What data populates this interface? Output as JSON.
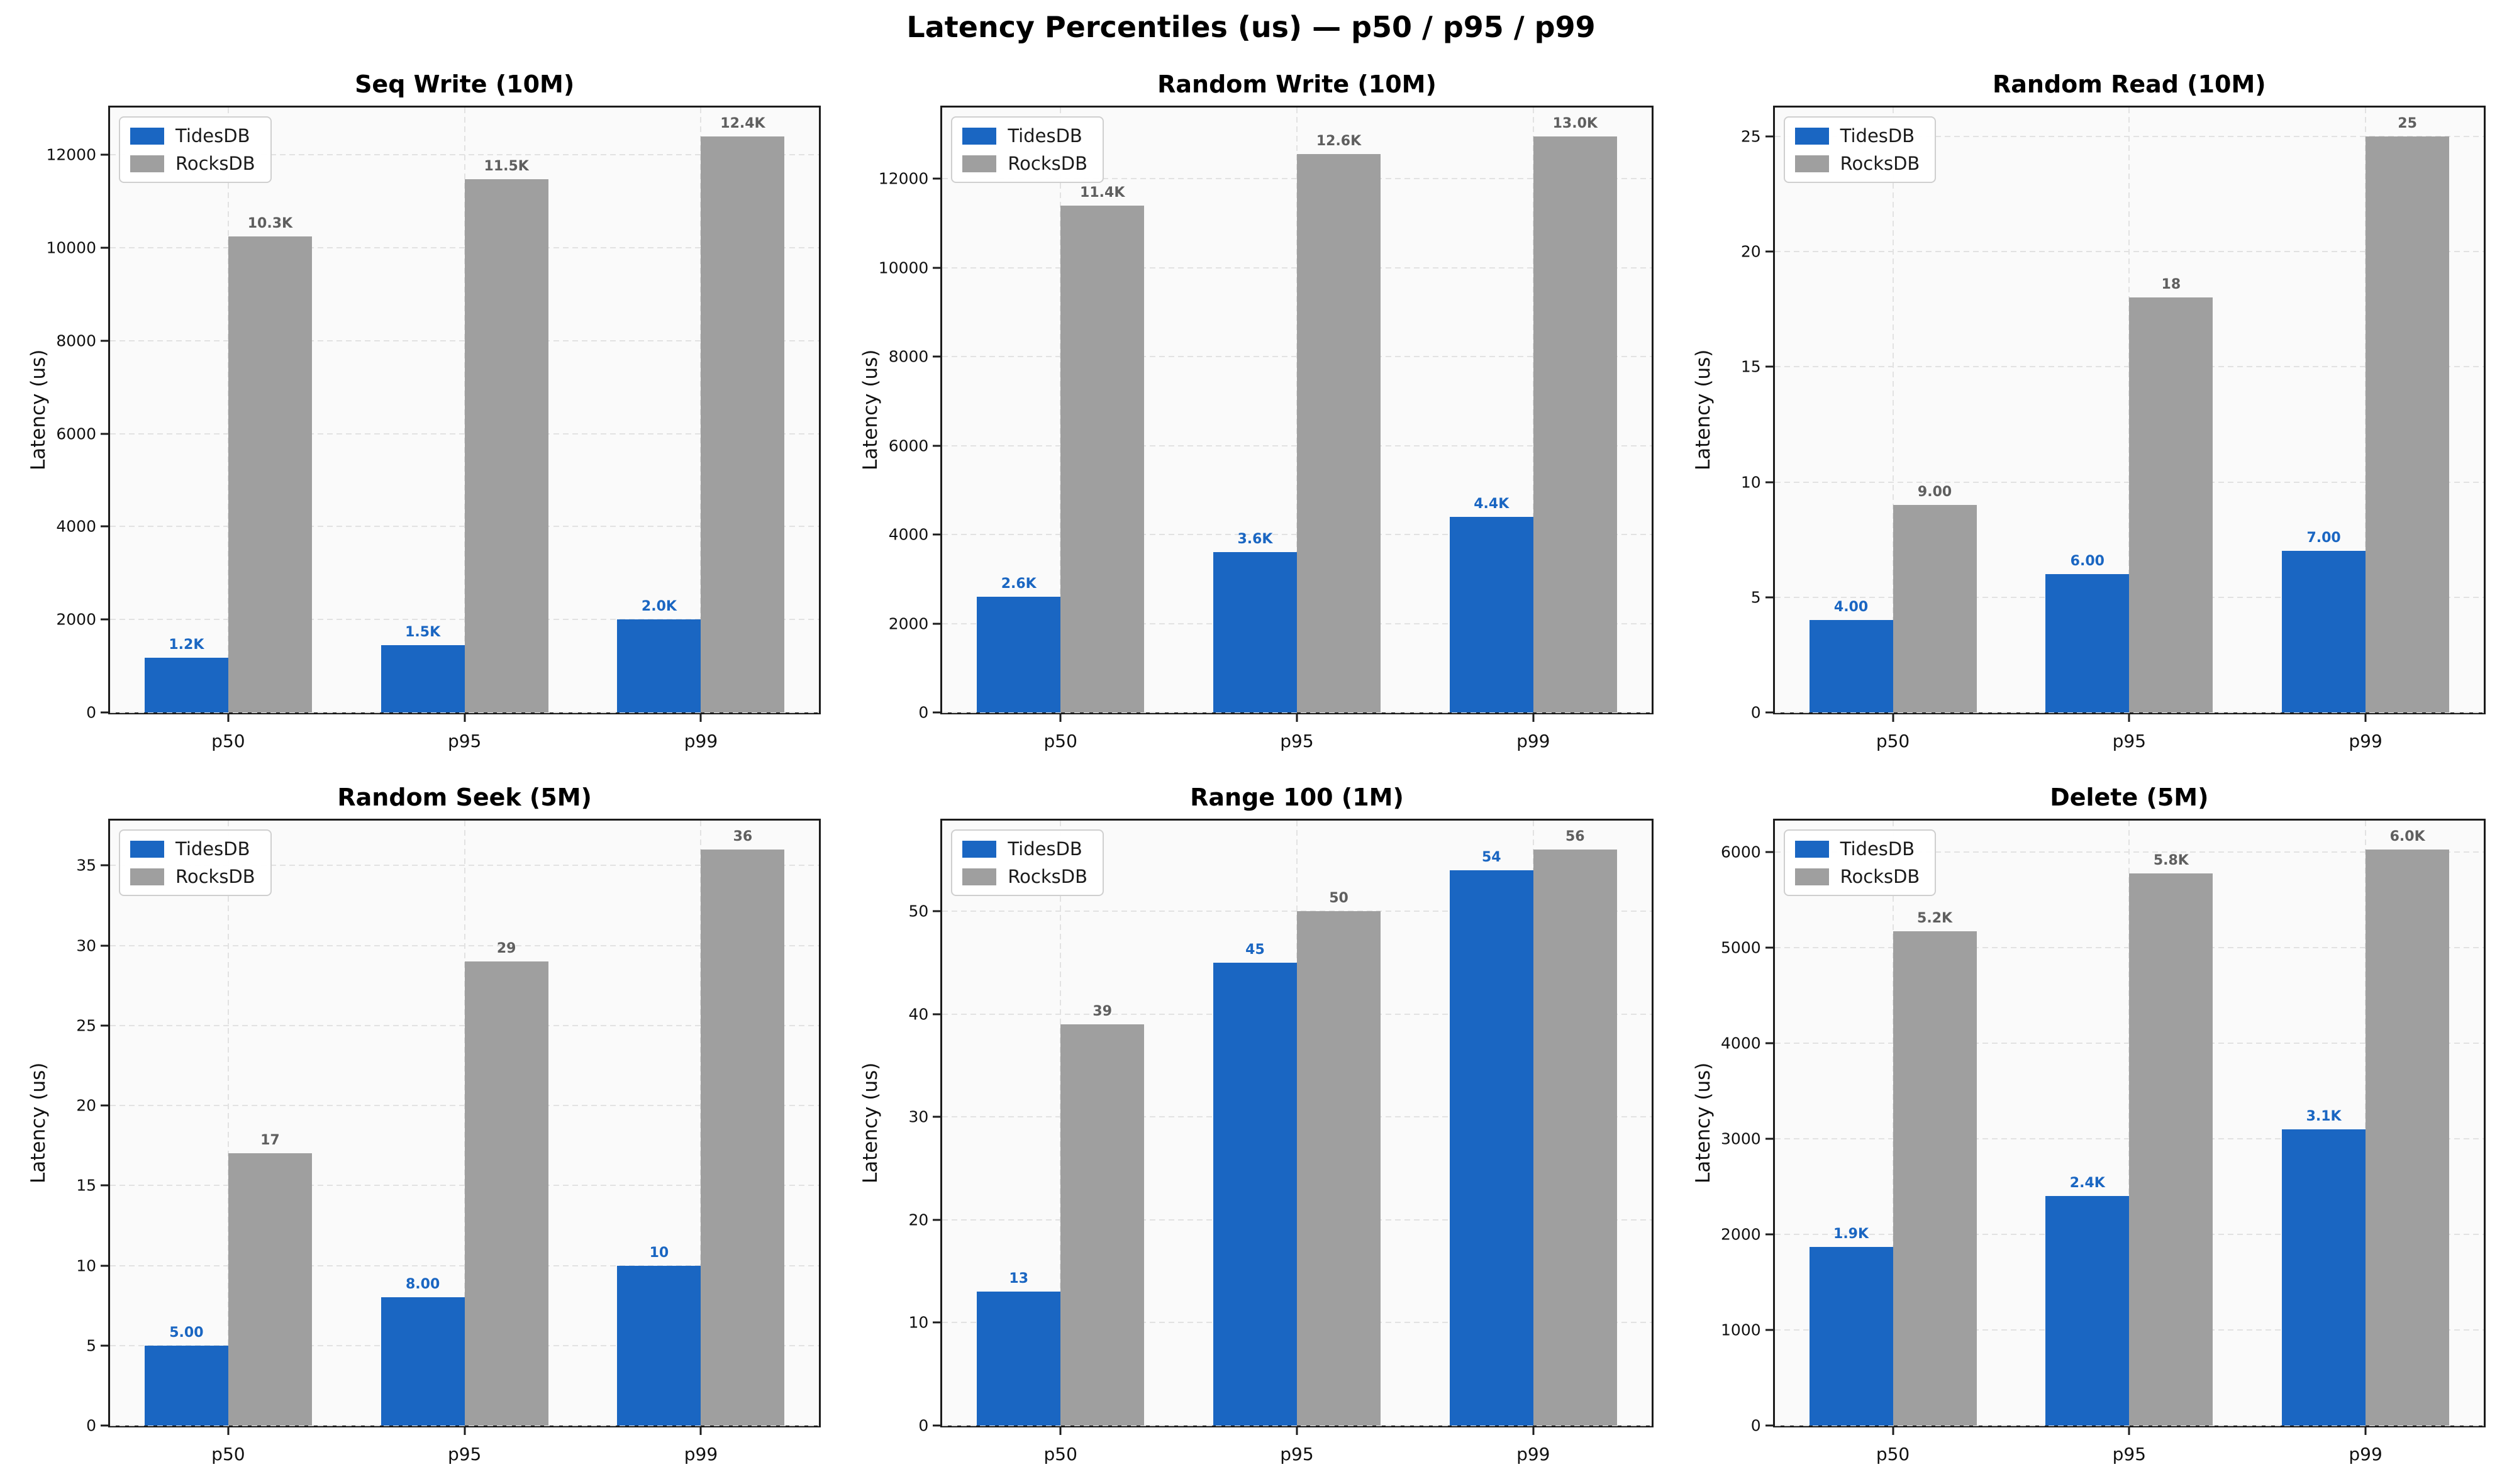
{
  "suptitle": "Latency Percentiles (us) — p50 / p95 / p99",
  "legend": {
    "items": [
      {
        "label": "TidesDB"
      },
      {
        "label": "RocksDB"
      }
    ]
  },
  "colors": {
    "tidesdb_bar": "#1a66c2",
    "rocksdb_bar": "#9f9f9f",
    "tidesdb_value_label": "#1a66c2",
    "rocksdb_value_label": "#5f5f5f",
    "grid": "#e2e2e2",
    "plot_background": "#fafafa",
    "spine": "#1c1c1c",
    "text": "#111111"
  },
  "chart_data": [
    {
      "type": "bar",
      "title": "Seq Write (10M)",
      "xlabel": "",
      "ylabel": "Latency (us)",
      "categories": [
        "p50",
        "p95",
        "p99"
      ],
      "yticks": [
        0,
        2000,
        4000,
        6000,
        8000,
        10000,
        12000
      ],
      "ylim": [
        0,
        13020
      ],
      "grid": "dashed",
      "legend_position": "upper left",
      "series": [
        {
          "name": "TidesDB",
          "values": [
            1180,
            1450,
            2000
          ],
          "labels": [
            "1.2K",
            "1.5K",
            "2.0K"
          ]
        },
        {
          "name": "RocksDB",
          "values": [
            10250,
            11480,
            12400
          ],
          "labels": [
            "10.3K",
            "11.5K",
            "12.4K"
          ]
        }
      ]
    },
    {
      "type": "bar",
      "title": "Random Write (10M)",
      "xlabel": "",
      "ylabel": "Latency (us)",
      "categories": [
        "p50",
        "p95",
        "p99"
      ],
      "yticks": [
        0,
        2000,
        4000,
        6000,
        8000,
        10000,
        12000
      ],
      "ylim": [
        0,
        13600
      ],
      "grid": "dashed",
      "legend_position": "upper left",
      "series": [
        {
          "name": "TidesDB",
          "values": [
            2600,
            3600,
            4400
          ],
          "labels": [
            "2.6K",
            "3.6K",
            "4.4K"
          ]
        },
        {
          "name": "RocksDB",
          "values": [
            11400,
            12550,
            12950
          ],
          "labels": [
            "11.4K",
            "12.6K",
            "13.0K"
          ]
        }
      ]
    },
    {
      "type": "bar",
      "title": "Random Read (10M)",
      "xlabel": "",
      "ylabel": "Latency (us)",
      "categories": [
        "p50",
        "p95",
        "p99"
      ],
      "yticks": [
        0,
        5,
        10,
        15,
        20,
        25
      ],
      "ylim": [
        0,
        26.25
      ],
      "grid": "dashed",
      "legend_position": "upper left",
      "series": [
        {
          "name": "TidesDB",
          "values": [
            4,
            6,
            7
          ],
          "labels": [
            "4.00",
            "6.00",
            "7.00"
          ]
        },
        {
          "name": "RocksDB",
          "values": [
            9,
            18,
            25
          ],
          "labels": [
            "9.00",
            "18",
            "25"
          ]
        }
      ]
    },
    {
      "type": "bar",
      "title": "Random Seek (5M)",
      "xlabel": "",
      "ylabel": "Latency (us)",
      "categories": [
        "p50",
        "p95",
        "p99"
      ],
      "yticks": [
        0,
        5,
        10,
        15,
        20,
        25,
        30,
        35
      ],
      "ylim": [
        0,
        37.8
      ],
      "grid": "dashed",
      "legend_position": "upper left",
      "series": [
        {
          "name": "TidesDB",
          "values": [
            5,
            8,
            10
          ],
          "labels": [
            "5.00",
            "8.00",
            "10"
          ]
        },
        {
          "name": "RocksDB",
          "values": [
            17,
            29,
            36
          ],
          "labels": [
            "17",
            "29",
            "36"
          ]
        }
      ]
    },
    {
      "type": "bar",
      "title": "Range 100 (1M)",
      "xlabel": "",
      "ylabel": "Latency (us)",
      "categories": [
        "p50",
        "p95",
        "p99"
      ],
      "yticks": [
        0,
        10,
        20,
        30,
        40,
        50
      ],
      "ylim": [
        0,
        58.8
      ],
      "grid": "dashed",
      "legend_position": "upper left",
      "series": [
        {
          "name": "TidesDB",
          "values": [
            13,
            45,
            54
          ],
          "labels": [
            "13",
            "45",
            "54"
          ]
        },
        {
          "name": "RocksDB",
          "values": [
            39,
            50,
            56
          ],
          "labels": [
            "39",
            "50",
            "56"
          ]
        }
      ]
    },
    {
      "type": "bar",
      "title": "Delete (5M)",
      "xlabel": "",
      "ylabel": "Latency (us)",
      "categories": [
        "p50",
        "p95",
        "p99"
      ],
      "yticks": [
        0,
        1000,
        2000,
        3000,
        4000,
        5000,
        6000
      ],
      "ylim": [
        0,
        6330
      ],
      "grid": "dashed",
      "legend_position": "upper left",
      "series": [
        {
          "name": "TidesDB",
          "values": [
            1870,
            2400,
            3100
          ],
          "labels": [
            "1.9K",
            "2.4K",
            "3.1K"
          ]
        },
        {
          "name": "RocksDB",
          "values": [
            5170,
            5780,
            6030
          ],
          "labels": [
            "5.2K",
            "5.8K",
            "6.0K"
          ]
        }
      ]
    }
  ]
}
